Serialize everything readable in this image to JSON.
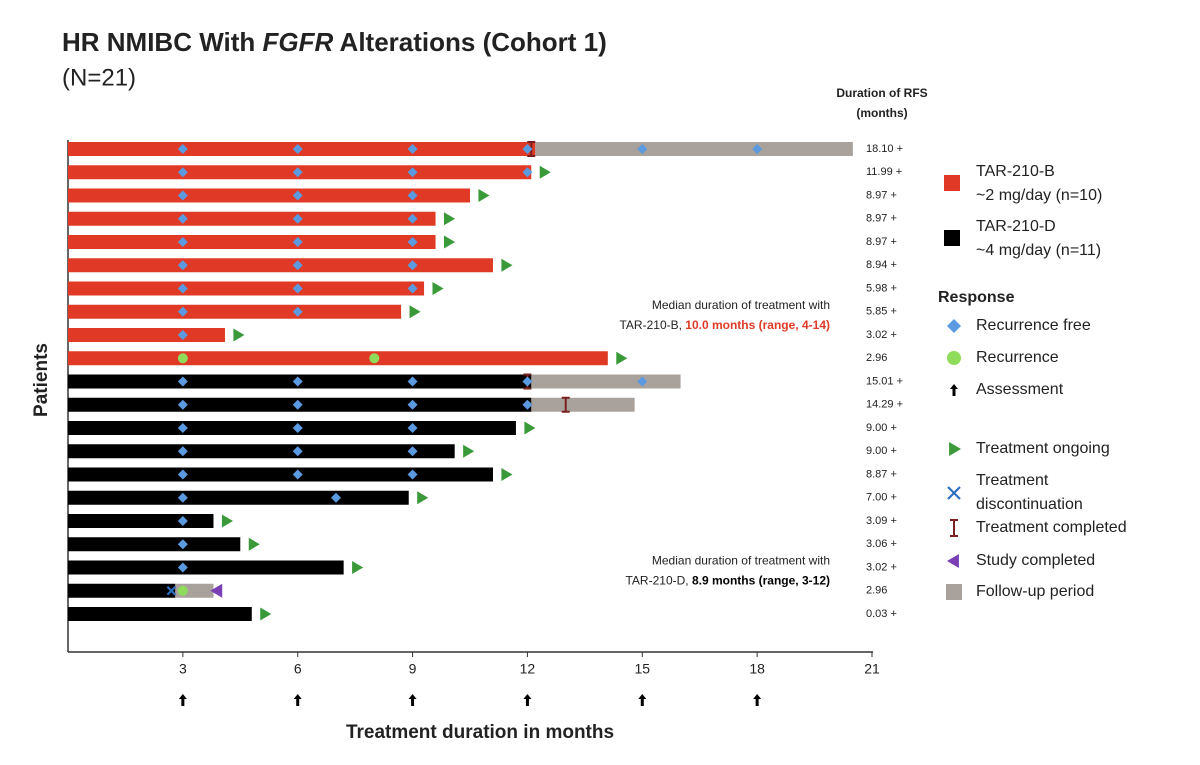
{
  "chart_data": {
    "type": "swimmer",
    "title": [
      "HR NMIBC With ",
      "FGFR",
      " Alterations (Cohort 1)"
    ],
    "subtitle": "(N=21)",
    "rfs_header": [
      "Duration of RFS",
      "(months)"
    ],
    "x_label": "Treatment duration in months",
    "y_label": "Patients",
    "xlim": [
      0,
      21
    ],
    "xticks": [
      3,
      6,
      9,
      12,
      15,
      18,
      21
    ],
    "assessments": [
      3,
      6,
      9,
      12,
      15,
      18
    ],
    "groups": [
      {
        "name": [
          "TAR-210-B",
          "~2 mg/day (n=10)"
        ],
        "color": "#e03a26"
      },
      {
        "name": [
          "TAR-210-D",
          "~4 mg/day (n=11)"
        ],
        "color": "#000000"
      }
    ],
    "response_title": "Response",
    "markers": {
      "recurrence_free": {
        "label": [
          "Recurrence free"
        ],
        "color": "#5b9ae0"
      },
      "recurrence": {
        "label": [
          "Recurrence"
        ],
        "color": "#8fdc5a"
      },
      "assessment": {
        "label": [
          "Assessment"
        ],
        "color": "#000000"
      },
      "ongoing": {
        "label": [
          "Treatment ongoing"
        ],
        "color": "#3a9a3a"
      },
      "discontinued": {
        "label": [
          "Treatment",
          "discontinuation"
        ],
        "color": "#2d6fc0"
      },
      "completed": {
        "label": [
          "Treatment completed"
        ],
        "color": "#7a1f1f"
      },
      "study_completed": {
        "label": [
          "Study completed"
        ],
        "color": "#7a3fb5"
      },
      "followup": {
        "label": [
          "Follow-up period"
        ],
        "color": "#a9a19b"
      }
    },
    "annotations": [
      {
        "text": "Median duration of treatment with",
        "group_text": "TAR-210-B, ",
        "highlight": "10.0 months (range, 4-14)",
        "color": "#e03a26",
        "row": 7
      },
      {
        "text": "Median duration of treatment with",
        "group_text": "TAR-210-D, ",
        "highlight": "8.9 months (range, 3-12)",
        "color": "#000000",
        "row": 18
      }
    ],
    "rows": [
      {
        "group": 0,
        "treatment": 12.2,
        "followup": 20.5,
        "completed": 12.1,
        "recurrence_free": [
          3,
          6,
          9,
          12,
          15,
          18
        ],
        "ongoing": false,
        "rfs": "18.10 +"
      },
      {
        "group": 0,
        "treatment": 12.1,
        "recurrence_free": [
          3,
          6,
          9,
          12
        ],
        "ongoing": true,
        "rfs": "11.99 +"
      },
      {
        "group": 0,
        "treatment": 10.5,
        "recurrence_free": [
          3,
          6,
          9
        ],
        "ongoing": true,
        "rfs": "8.97 +"
      },
      {
        "group": 0,
        "treatment": 9.6,
        "recurrence_free": [
          3,
          6,
          9
        ],
        "ongoing": true,
        "rfs": "8.97 +"
      },
      {
        "group": 0,
        "treatment": 9.6,
        "recurrence_free": [
          3,
          6,
          9
        ],
        "ongoing": true,
        "rfs": "8.97 +"
      },
      {
        "group": 0,
        "treatment": 11.1,
        "recurrence_free": [
          3,
          6,
          9
        ],
        "ongoing": true,
        "rfs": "8.94 +"
      },
      {
        "group": 0,
        "treatment": 9.3,
        "recurrence_free": [
          3,
          6,
          9
        ],
        "ongoing": true,
        "rfs": "5.98 +"
      },
      {
        "group": 0,
        "treatment": 8.7,
        "recurrence_free": [
          3,
          6
        ],
        "ongoing": true,
        "rfs": "5.85 +"
      },
      {
        "group": 0,
        "treatment": 4.1,
        "recurrence_free": [
          3
        ],
        "ongoing": true,
        "rfs": "3.02 +"
      },
      {
        "group": 0,
        "treatment": 14.1,
        "recurrence": [
          3,
          8
        ],
        "ongoing": true,
        "rfs": "2.96"
      },
      {
        "group": 1,
        "treatment": 12.1,
        "followup": 16.0,
        "completed": 12.0,
        "recurrence_free": [
          3,
          6,
          9,
          12,
          15
        ],
        "ongoing": false,
        "rfs": "15.01 +"
      },
      {
        "group": 1,
        "treatment": 12.1,
        "followup": 14.8,
        "completed": 13.0,
        "recurrence_free": [
          3,
          6,
          9,
          12
        ],
        "ongoing": false,
        "rfs": "14.29 +"
      },
      {
        "group": 1,
        "treatment": 11.7,
        "recurrence_free": [
          3,
          6,
          9
        ],
        "ongoing": true,
        "rfs": "9.00 +"
      },
      {
        "group": 1,
        "treatment": 10.1,
        "recurrence_free": [
          3,
          6,
          9
        ],
        "ongoing": true,
        "rfs": "9.00 +"
      },
      {
        "group": 1,
        "treatment": 11.1,
        "recurrence_free": [
          3,
          6,
          9
        ],
        "ongoing": true,
        "rfs": "8.87 +"
      },
      {
        "group": 1,
        "treatment": 8.9,
        "recurrence_free": [
          3,
          7
        ],
        "ongoing": true,
        "rfs": "7.00 +"
      },
      {
        "group": 1,
        "treatment": 3.8,
        "recurrence_free": [
          3
        ],
        "ongoing": true,
        "rfs": "3.09 +"
      },
      {
        "group": 1,
        "treatment": 4.5,
        "recurrence_free": [
          3
        ],
        "ongoing": true,
        "rfs": "3.06 +"
      },
      {
        "group": 1,
        "treatment": 7.2,
        "recurrence_free": [
          3
        ],
        "ongoing": true,
        "rfs": "3.02 +"
      },
      {
        "group": 1,
        "treatment": 2.8,
        "followup": 3.8,
        "discontinued": 2.7,
        "recurrence": [
          3
        ],
        "study_completed": 3.9,
        "ongoing": false,
        "rfs": "2.96"
      },
      {
        "group": 1,
        "treatment": 4.8,
        "ongoing": true,
        "rfs": "0.03 +"
      }
    ]
  }
}
